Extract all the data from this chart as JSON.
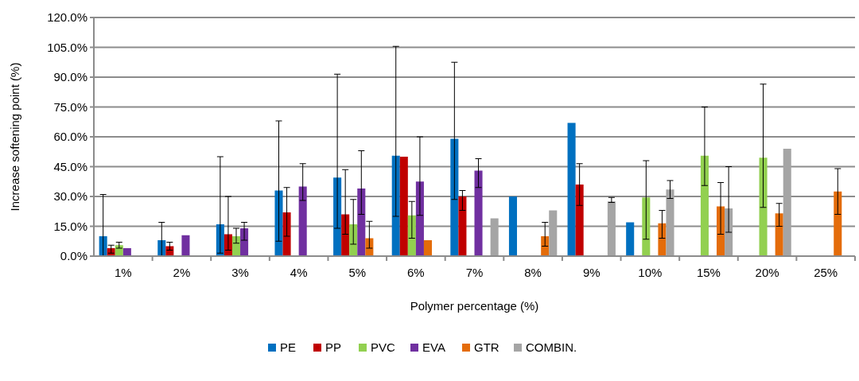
{
  "chart_data": {
    "type": "bar",
    "xlabel": "Polymer percentage (%)",
    "ylabel": "Increase softening point (%)",
    "categories": [
      "1%",
      "2%",
      "3%",
      "4%",
      "5%",
      "6%",
      "7%",
      "8%",
      "9%",
      "10%",
      "15%",
      "20%",
      "25%"
    ],
    "ylim": [
      0,
      120
    ],
    "yticks": [
      {
        "value": 0,
        "label": "0.0%"
      },
      {
        "value": 15,
        "label": "15.0%"
      },
      {
        "value": 30,
        "label": "30.0%"
      },
      {
        "value": 45,
        "label": "45.0%"
      },
      {
        "value": 60,
        "label": "60.0%"
      },
      {
        "value": 75,
        "label": "75.0%"
      },
      {
        "value": 90,
        "label": "90.0%"
      },
      {
        "value": 105,
        "label": "105.0%"
      },
      {
        "value": 120,
        "label": "120.0%"
      }
    ],
    "grid": "y",
    "legend": "bottom",
    "series": [
      {
        "name": "PE",
        "color": "#0070c0",
        "values": [
          10,
          8,
          16,
          33,
          39.5,
          50.5,
          59,
          30,
          67,
          17,
          null,
          null,
          null
        ],
        "errors": [
          [
            0,
            31
          ],
          [
            0,
            17
          ],
          [
            1.5,
            50
          ],
          [
            7.5,
            68
          ],
          [
            14,
            91.5
          ],
          [
            20,
            105.5
          ],
          [
            28.5,
            97.5
          ],
          null,
          null,
          null,
          null,
          null,
          null
        ]
      },
      {
        "name": "PP",
        "color": "#c00000",
        "values": [
          4,
          5,
          11,
          22,
          21,
          50,
          30,
          null,
          36,
          null,
          null,
          null,
          null
        ],
        "errors": [
          [
            1.5,
            5.5
          ],
          [
            3,
            7
          ],
          [
            3,
            30
          ],
          [
            10,
            34.5
          ],
          [
            11,
            43.5
          ],
          null,
          [
            23,
            33
          ],
          null,
          [
            25.5,
            46.5
          ],
          null,
          null,
          null,
          null
        ]
      },
      {
        "name": "PVC",
        "color": "#92d050",
        "values": [
          5.5,
          null,
          10,
          null,
          16,
          20.5,
          null,
          null,
          null,
          29.5,
          50.5,
          49.5,
          null
        ],
        "errors": [
          [
            4,
            7
          ],
          null,
          [
            6.5,
            14
          ],
          null,
          [
            6,
            28.5
          ],
          [
            9,
            27.5
          ],
          null,
          null,
          null,
          [
            8.5,
            48
          ],
          [
            35.5,
            75
          ],
          [
            24.5,
            86.5
          ],
          null
        ]
      },
      {
        "name": "EVA",
        "color": "#7030a0",
        "values": [
          4,
          10.5,
          14,
          35,
          34,
          37.5,
          43,
          null,
          null,
          null,
          null,
          null,
          null
        ],
        "errors": [
          null,
          null,
          [
            8,
            17
          ],
          [
            28,
            46.5
          ],
          [
            21,
            53
          ],
          [
            20.5,
            60
          ],
          [
            34.5,
            49
          ],
          null,
          null,
          null,
          null,
          null,
          null
        ]
      },
      {
        "name": "GTR",
        "color": "#e46c0a",
        "values": [
          null,
          null,
          null,
          null,
          9,
          8,
          null,
          10,
          null,
          16.5,
          25,
          21.5,
          32.5
        ],
        "errors": [
          null,
          null,
          null,
          null,
          [
            4,
            17.5
          ],
          null,
          null,
          [
            5,
            17
          ],
          null,
          [
            9,
            23
          ],
          [
            11,
            37
          ],
          [
            15,
            26.5
          ],
          [
            21,
            44
          ]
        ]
      },
      {
        "name": "COMBIN.",
        "color": "#a5a5a5",
        "values": [
          null,
          null,
          null,
          null,
          null,
          null,
          19,
          23,
          27.5,
          33.5,
          24,
          54,
          null
        ],
        "errors": [
          null,
          null,
          null,
          null,
          null,
          null,
          null,
          null,
          [
            27,
            29.5
          ],
          [
            29,
            38
          ],
          [
            12,
            45
          ],
          null,
          null
        ]
      }
    ]
  }
}
